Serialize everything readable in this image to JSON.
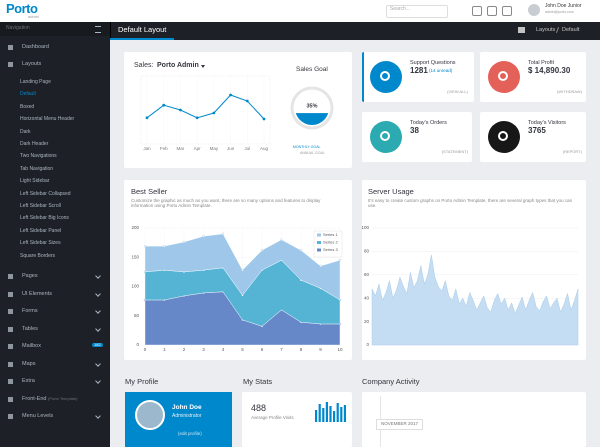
{
  "header": {
    "logo": "Porto",
    "logo_sub": "admin",
    "search_placeholder": "Search...",
    "user_name": "John Doe Junior",
    "user_email": "admin@porto.com"
  },
  "sidebar": {
    "title": "Navigation",
    "top_items": [
      "Dashboard",
      "Layouts"
    ],
    "layout_items": [
      "Landing Page",
      "Default",
      "Boxed",
      "Horizontal Menu Header",
      "Dark",
      "Dark Header",
      "Two Navigations",
      "Tab Navigation",
      "Light Sidebar",
      "Left Sidebar Collapsed",
      "Left Sidebar Scroll",
      "Left Sidebar Big Icons",
      "Left Sidebar Panel",
      "Left Sidebar Sizes",
      "Square Borders"
    ],
    "bottom_items": [
      "Pages",
      "UI Elements",
      "Forms",
      "Tables",
      "Mailbox",
      "Maps",
      "Extra",
      "Front-End",
      "Menu Levels"
    ],
    "mailbox_badge": "182",
    "front_end_note": "(Porto Template)"
  },
  "page_header": {
    "title": "Default Layout",
    "breadcrumbs": [
      "Layouts",
      "Default"
    ]
  },
  "sales": {
    "label": "Sales:",
    "selector": "Porto Admin",
    "chart": {
      "type": "line",
      "categories": [
        "Jan",
        "Feb",
        "Mar",
        "Apr",
        "May",
        "Jun",
        "Jul",
        "Aug"
      ],
      "values": [
        37,
        58,
        50,
        37,
        45,
        75,
        65,
        35
      ],
      "ylim": [
        0,
        100
      ],
      "color": "#0088cc"
    },
    "goal": {
      "title": "Sales Goal",
      "value": 35,
      "value_label": "35%",
      "links": [
        "MONTHLY GOAL",
        "ANNUAL GOAL"
      ],
      "color": "#0088cc"
    }
  },
  "stats": [
    {
      "title": "Support Questions",
      "value": "1281",
      "note": "(14 unread)",
      "action": "(VIEW ALL)",
      "color": "#0088cc"
    },
    {
      "title": "Total Profit",
      "value": "$ 14,890.30",
      "action": "(WITHDRAW)",
      "color": "#e36159"
    },
    {
      "title": "Today's Orders",
      "value": "38",
      "action": "(STATEMENT)",
      "color": "#2baab1"
    },
    {
      "title": "Today's Visitors",
      "value": "3765",
      "action": "(REPORT)",
      "color": "#171717"
    }
  ],
  "best_seller": {
    "title": "Best Seller",
    "description": "Customize the graphic as much as you want, there are so many options and features to display information using Porto Admin Template.",
    "chart": {
      "type": "area",
      "x": [
        0,
        1,
        2,
        3,
        4,
        5,
        6,
        7,
        8,
        9,
        10
      ],
      "xlim": [
        0,
        10
      ],
      "xticks": [
        0,
        1,
        2,
        3,
        4,
        5,
        6,
        7,
        8,
        9,
        10
      ],
      "ylim": [
        0,
        200
      ],
      "yticks": [
        0,
        50,
        100,
        150,
        200
      ],
      "stacked": true,
      "grid": true,
      "series": [
        {
          "name": "Series 1",
          "color": "#9fc7ea",
          "values": [
            44,
            41,
            51,
            58,
            58,
            43,
            34,
            35,
            51,
            38,
            68
          ]
        },
        {
          "name": "Series 2",
          "color": "#55b4d4",
          "values": [
            48,
            51,
            41,
            39,
            41,
            42,
            96,
            85,
            72,
            61,
            41
          ]
        },
        {
          "name": "Series 3",
          "color": "#6688c9",
          "values": [
            77,
            77,
            84,
            89,
            91,
            43,
            32,
            60,
            39,
            36,
            36
          ]
        }
      ]
    }
  },
  "server_usage": {
    "title": "Server Usage",
    "description": "It's easy to create custom graphs on Porto Admin Template, there are several graph types that you can use.",
    "chart": {
      "type": "area",
      "ylim": [
        0,
        100
      ],
      "yticks": [
        0,
        20,
        40,
        60,
        80,
        100
      ],
      "color": "#c5ddf3",
      "grid": true,
      "values": [
        48,
        42,
        52,
        38,
        45,
        55,
        40,
        47,
        58,
        50,
        44,
        62,
        49,
        55,
        68,
        52,
        60,
        77,
        58,
        50,
        46,
        55,
        42,
        38,
        48,
        35,
        40,
        33,
        45,
        38,
        30,
        36,
        42,
        32,
        28,
        38,
        44,
        35,
        40,
        30,
        36,
        27,
        34,
        41,
        30,
        38,
        45,
        33,
        29,
        37,
        42,
        31,
        36,
        40,
        28,
        35,
        44,
        30,
        38,
        48
      ]
    }
  },
  "profile": {
    "title": "My Profile",
    "name": "John Doe",
    "role": "Administrator",
    "link": "(edit profile)"
  },
  "my_stats": {
    "title": "My Stats",
    "value": "488",
    "caption": "Average Profile Visits",
    "bars": {
      "values": [
        60,
        90,
        70,
        100,
        80,
        55,
        95,
        75,
        85
      ],
      "ylim": [
        0,
        100
      ],
      "color": "#0088cc"
    }
  },
  "activity": {
    "title": "Company Activity",
    "month": "NOVEMBER 2017"
  }
}
